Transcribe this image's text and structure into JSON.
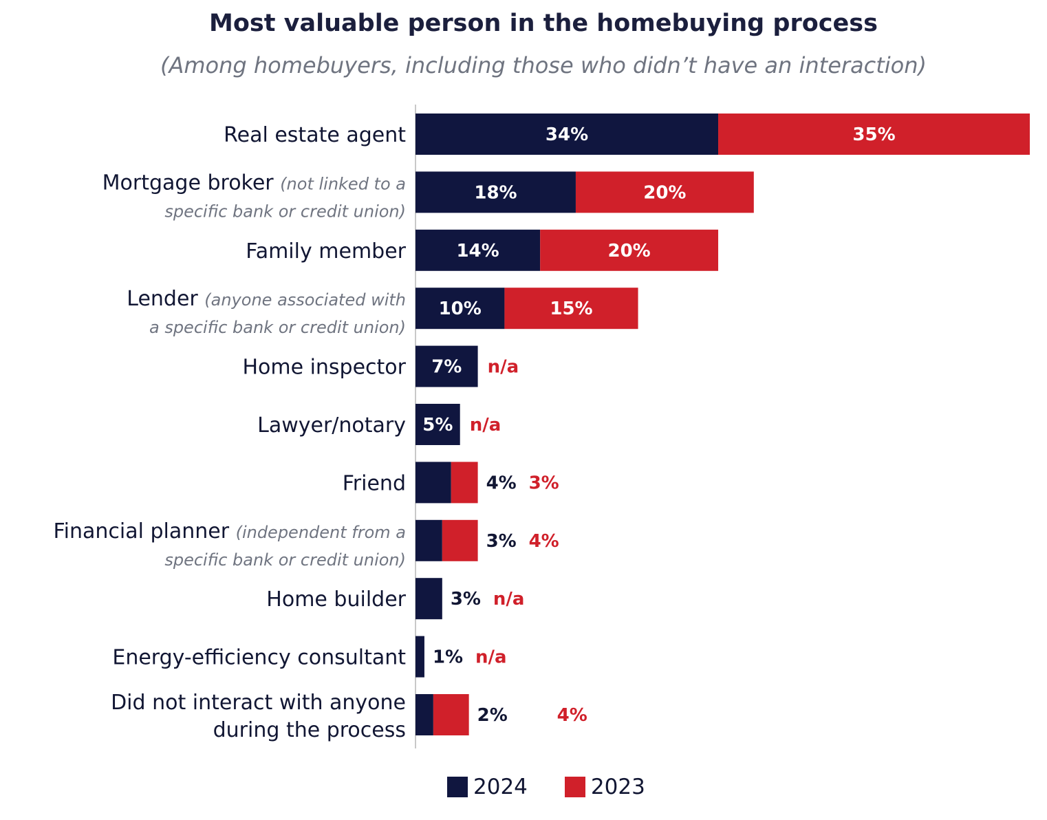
{
  "chart_data": {
    "type": "bar",
    "orientation": "horizontal",
    "stacked": true,
    "title": "Most valuable person in the homebuying process",
    "subtitle": "(Among homebuyers, including those who didn’t have an interaction)",
    "categories": [
      {
        "label": "Real estate agent",
        "note": ""
      },
      {
        "label": "Mortgage broker",
        "note_line1": "(not linked to a",
        "note_line2": "specific bank or credit union)"
      },
      {
        "label": "Family member",
        "note": ""
      },
      {
        "label": "Lender",
        "note_line1": "(anyone associated with",
        "note_line2": "a specific bank or credit union)"
      },
      {
        "label": "Home inspector",
        "note": ""
      },
      {
        "label": "Lawyer/notary",
        "note": ""
      },
      {
        "label": "Friend",
        "note": ""
      },
      {
        "label": "Financial planner",
        "note_line1": "(independent from a",
        "note_line2": "specific bank or credit union)"
      },
      {
        "label": "Home builder",
        "note": ""
      },
      {
        "label": "Energy-efficiency consultant",
        "note": ""
      },
      {
        "label_line1": "Did not interact with anyone",
        "label_line2": "during the process"
      }
    ],
    "series": [
      {
        "name": "2024",
        "color": "#10163f",
        "values": [
          34,
          18,
          14,
          10,
          7,
          5,
          4,
          3,
          3,
          1,
          2
        ],
        "labels": [
          "34%",
          "18%",
          "14%",
          "10%",
          "7%",
          "5%",
          "4%",
          "3%",
          "3%",
          "1%",
          "2%"
        ]
      },
      {
        "name": "2023",
        "color": "#d0202a",
        "values": [
          35,
          20,
          20,
          15,
          null,
          null,
          3,
          4,
          null,
          null,
          4
        ],
        "labels": [
          "35%",
          "20%",
          "20%",
          "15%",
          "n/a",
          "n/a",
          "3%",
          "4%",
          "n/a",
          "n/a",
          "4%"
        ]
      }
    ],
    "xlim": [
      0,
      69
    ],
    "grid": false,
    "legend_position": "bottom"
  }
}
